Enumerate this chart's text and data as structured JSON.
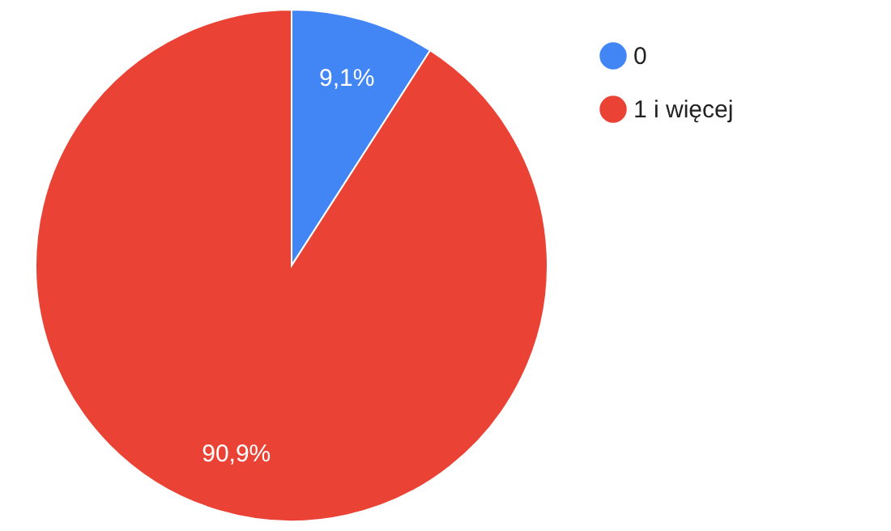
{
  "chart_data": {
    "type": "pie",
    "categories": [
      "0",
      "1 i więcej"
    ],
    "values": [
      9.1,
      90.9
    ],
    "colors": [
      "#4285f4",
      "#ea4335"
    ],
    "value_labels": [
      "9,1%",
      "90,9%"
    ],
    "legend": "top right"
  }
}
